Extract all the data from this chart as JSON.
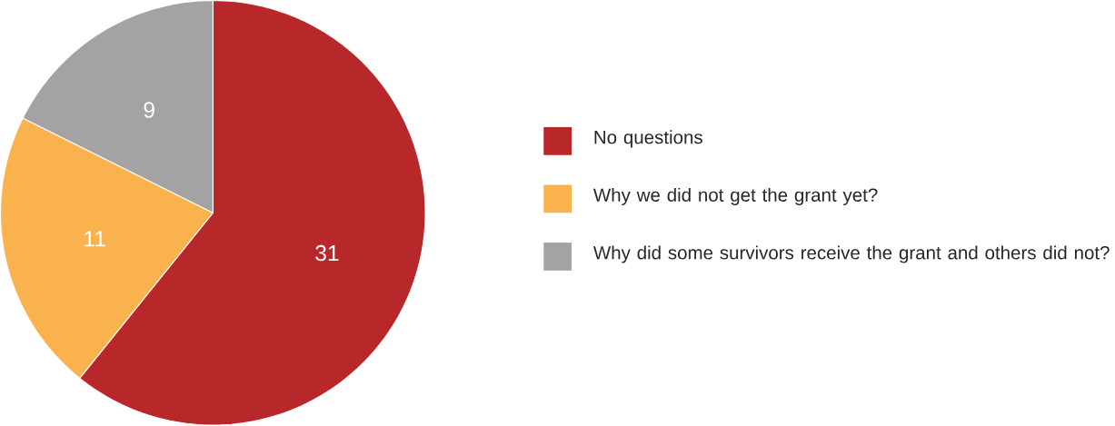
{
  "chart_data": {
    "type": "pie",
    "categories": [
      "No questions",
      "Why we did not get the grant yet?",
      "Why did some survivors receive the grant and others did not?"
    ],
    "values": [
      31,
      11,
      9
    ],
    "colors": [
      "#b8272a",
      "#f9b24e",
      "#a2a3a2"
    ],
    "data_labels": true,
    "legend": "right"
  }
}
